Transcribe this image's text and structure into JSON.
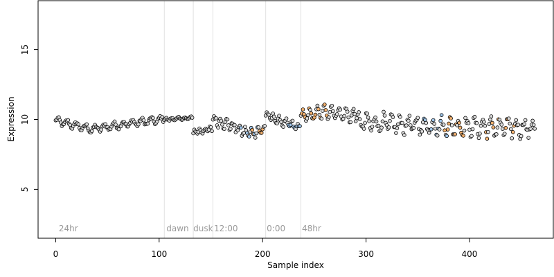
{
  "chart_data": {
    "type": "scatter",
    "title": "",
    "xlabel": "Sample index",
    "ylabel": "Expression",
    "xlim": [
      -17,
      481
    ],
    "ylim": [
      1.5,
      18.5
    ],
    "x_ticks": [
      0,
      100,
      200,
      300,
      400
    ],
    "x_tick_labels": [
      "0",
      "100",
      "200",
      "300",
      "400"
    ],
    "y_ticks": [
      5,
      10,
      15
    ],
    "y_tick_labels": [
      "5",
      "10",
      "15"
    ],
    "grid": false,
    "legend": "none",
    "point_colors": {
      "default": "#d9d9d9",
      "blue": "#9ec3e6",
      "orange": "#f2b06e",
      "outline": "#000000"
    },
    "vlines": {
      "color": "#e0e0e0",
      "x": [
        105,
        133,
        152,
        203,
        237
      ]
    },
    "annotations": [
      {
        "x": 3,
        "y": 2.0,
        "text": "24hr"
      },
      {
        "x": 107,
        "y": 2.0,
        "text": "dawn"
      },
      {
        "x": 133,
        "y": 2.0,
        "text": "dusk"
      },
      {
        "x": 153,
        "y": 2.0,
        "text": "12:00"
      },
      {
        "x": 204,
        "y": 2.0,
        "text": "0:00"
      },
      {
        "x": 238,
        "y": 2.0,
        "text": "48hr"
      }
    ],
    "segments": [
      {
        "start": 0,
        "end": 104,
        "base": [
          9.9,
          9.3,
          9.7,
          10.0
        ],
        "amp": 0.22,
        "period": 9,
        "noise": 0.12
      },
      {
        "start": 105,
        "end": 132,
        "base": [
          10.0,
          10.1
        ],
        "amp": 0.08,
        "period": 6,
        "noise": 0.06
      },
      {
        "start": 133,
        "end": 151,
        "base": [
          9.1,
          9.3
        ],
        "amp": 0.15,
        "period": 5,
        "noise": 0.12
      },
      {
        "start": 152,
        "end": 202,
        "base": [
          10.0,
          9.6,
          9.0,
          9.3
        ],
        "amp": 0.3,
        "period": 6,
        "noise": 0.2
      },
      {
        "start": 203,
        "end": 236,
        "base": [
          10.3,
          9.8,
          9.4
        ],
        "amp": 0.25,
        "period": 6,
        "noise": 0.15
      },
      {
        "start": 237,
        "end": 290,
        "base": [
          10.2,
          10.6,
          10.2
        ],
        "amp": 0.45,
        "period": 7,
        "noise": 0.15
      },
      {
        "start": 291,
        "end": 463,
        "base": [
          9.8,
          9.5,
          9.4
        ],
        "amp": 0.55,
        "period": 8,
        "noise": 0.3
      }
    ],
    "orange_ranges": [
      [
        190,
        200
      ],
      [
        238,
        262
      ],
      [
        372,
        395
      ],
      [
        415,
        445
      ]
    ],
    "blue_ranges": [
      [
        178,
        195
      ],
      [
        225,
        236
      ],
      [
        355,
        380
      ]
    ]
  }
}
